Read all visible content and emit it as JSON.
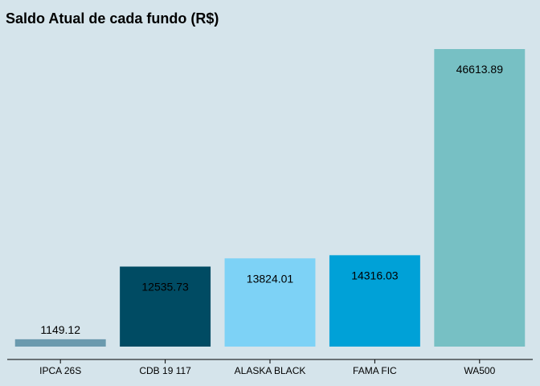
{
  "chart_data": {
    "type": "bar",
    "title": "Saldo Atual de cada fundo (R$)",
    "xlabel": "",
    "ylabel": "",
    "categories": [
      "IPCA 26S",
      "CDB 19 117",
      "ALASKA BLACK",
      "FAMA FIC",
      "WA500"
    ],
    "values": [
      1149.12,
      12535.73,
      13824.01,
      14316.03,
      46613.89
    ],
    "value_labels": [
      "1149.12",
      "12535.73",
      "13824.01",
      "14316.03",
      "46613.89"
    ],
    "colors": [
      "#6b9aae",
      "#004b63",
      "#7dd2f6",
      "#00a1d7",
      "#77c0c4"
    ],
    "ylim": [
      0,
      46613.89
    ],
    "grid": false,
    "legend": "none"
  }
}
